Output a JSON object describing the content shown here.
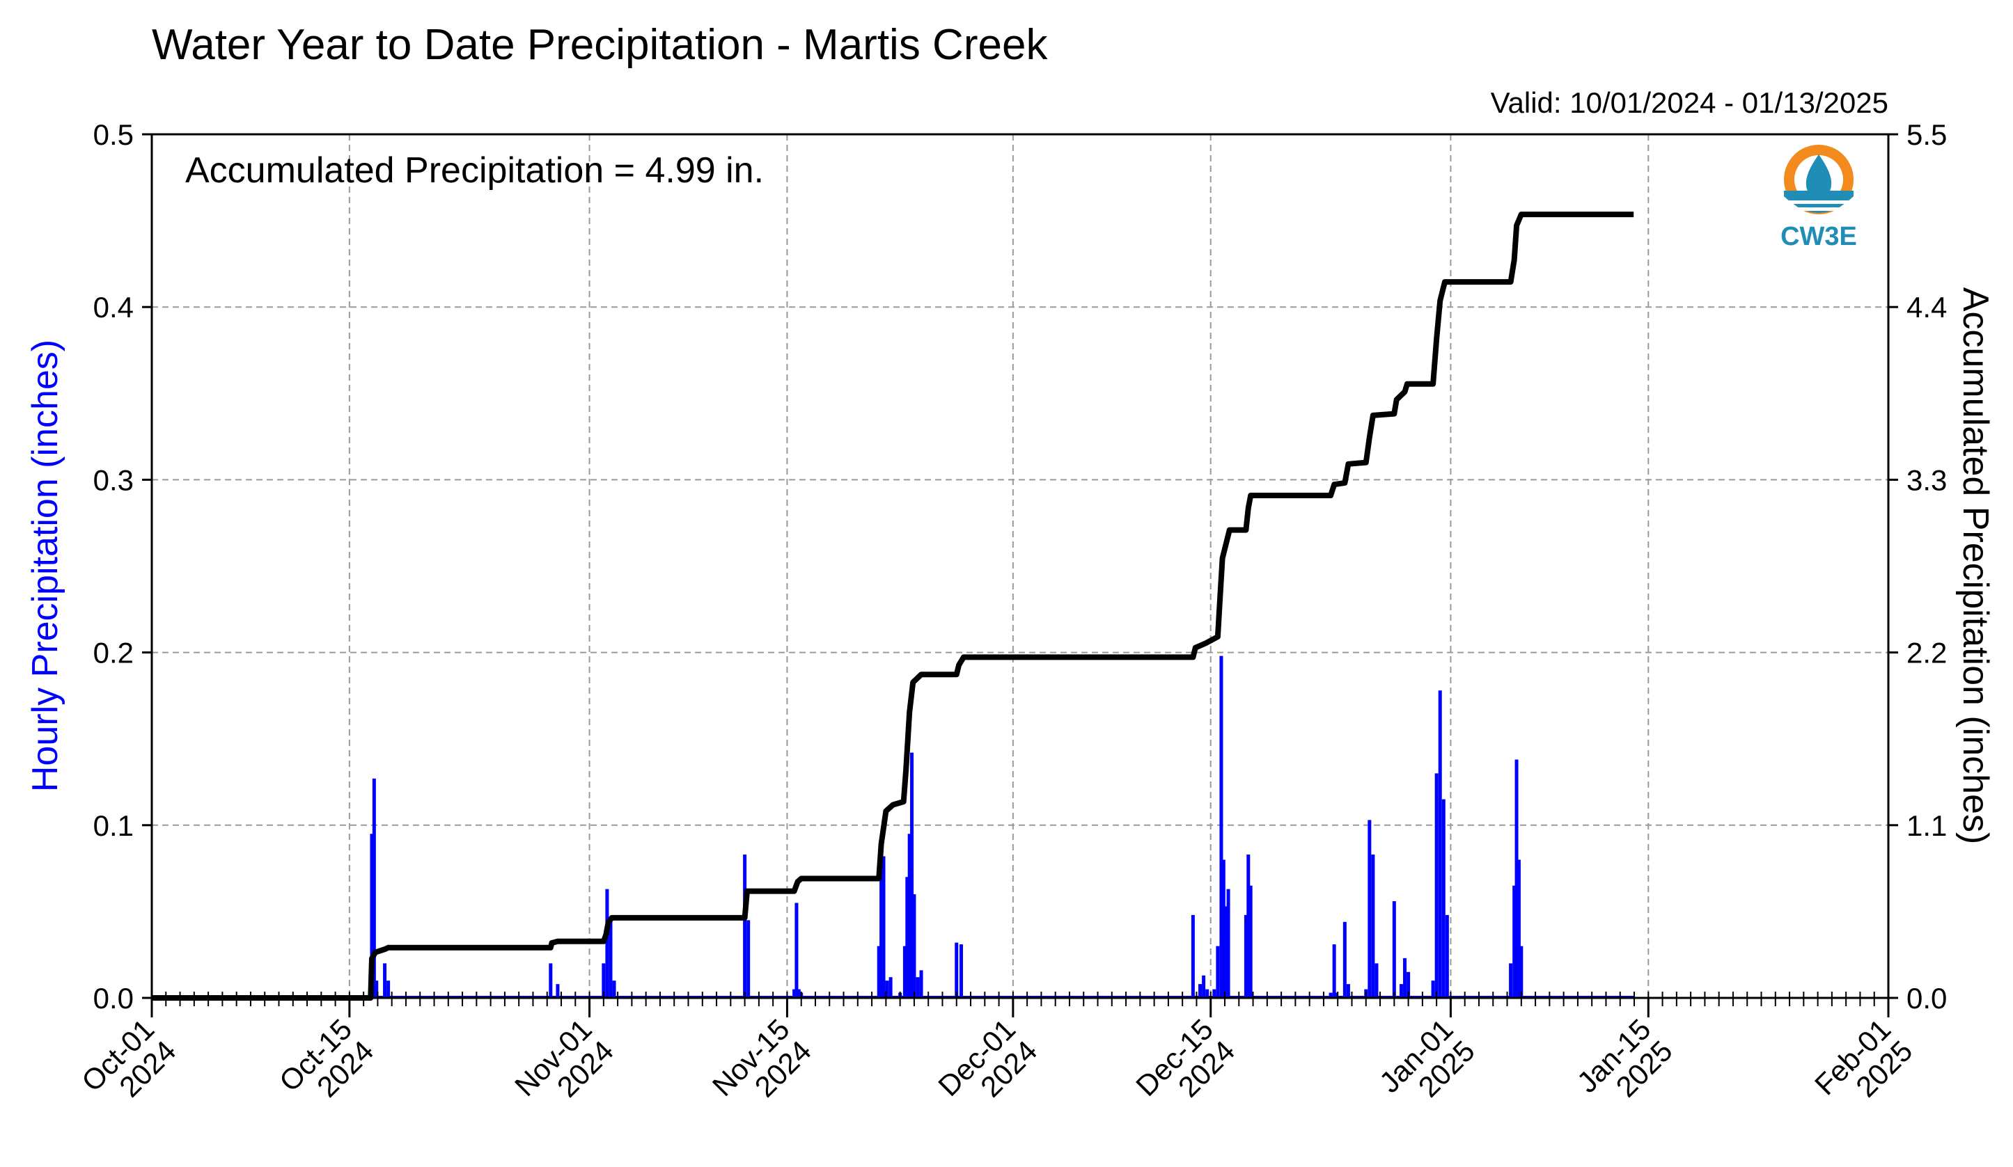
{
  "chart_data": {
    "type": "bar+line",
    "title": "Water Year to Date Precipitation - Martis Creek",
    "valid_text": "Valid: 10/01/2024 - 01/13/2025",
    "annotation": "Accumulated Precipitation = 4.99 in.",
    "logo_text": "CW3E",
    "y_left": {
      "label": "Hourly Precipitation (inches)",
      "range": [
        0,
        0.5
      ],
      "ticks": [
        0.0,
        0.1,
        0.2,
        0.3,
        0.4,
        0.5
      ],
      "tick_labels": [
        "0.0",
        "0.1",
        "0.2",
        "0.3",
        "0.4",
        "0.5"
      ],
      "color": "#0000ff"
    },
    "y_right": {
      "label": "Accumulated Precipitation (inches)",
      "range": [
        0,
        5.5
      ],
      "ticks": [
        0.0,
        1.1,
        2.2,
        3.3,
        4.4,
        5.5
      ],
      "tick_labels": [
        "0.0",
        "1.1",
        "2.2",
        "3.3",
        "4.4",
        "5.5"
      ]
    },
    "x_axis": {
      "range": [
        "2024-10-01",
        "2025-02-01"
      ],
      "ticks": [
        "2024-10-01",
        "2024-10-15",
        "2024-11-01",
        "2024-11-15",
        "2024-12-01",
        "2024-12-15",
        "2025-01-01",
        "2025-01-15",
        "2025-02-01"
      ],
      "tick_labels": [
        [
          "Oct-01",
          "2024"
        ],
        [
          "Oct-15",
          "2024"
        ],
        [
          "Nov-01",
          "2024"
        ],
        [
          "Nov-15",
          "2024"
        ],
        [
          "Dec-01",
          "2024"
        ],
        [
          "Dec-15",
          "2024"
        ],
        [
          "Jan-01",
          "2025"
        ],
        [
          "Jan-15",
          "2025"
        ],
        [
          "Feb-01",
          "2025"
        ]
      ]
    },
    "grid": true,
    "series": [
      {
        "name": "Hourly Precipitation",
        "kind": "bar",
        "color": "#0000ff",
        "points": [
          [
            "2024-10-16 14:00",
            0.095
          ],
          [
            "2024-10-16 18:00",
            0.127
          ],
          [
            "2024-10-16 22:00",
            0.01
          ],
          [
            "2024-10-17 12:00",
            0.02
          ],
          [
            "2024-10-17 18:00",
            0.01
          ],
          [
            "2024-10-29 06:00",
            0.02
          ],
          [
            "2024-10-29 18:00",
            0.008
          ],
          [
            "2024-11-02 00:00",
            0.02
          ],
          [
            "2024-11-02 06:00",
            0.063
          ],
          [
            "2024-11-02 12:00",
            0.045
          ],
          [
            "2024-11-02 18:00",
            0.01
          ],
          [
            "2024-11-12 00:00",
            0.083
          ],
          [
            "2024-11-12 06:00",
            0.045
          ],
          [
            "2024-11-15 12:00",
            0.005
          ],
          [
            "2024-11-15 16:00",
            0.055
          ],
          [
            "2024-11-15 20:00",
            0.005
          ],
          [
            "2024-11-16 00:00",
            0.003
          ],
          [
            "2024-11-21 12:00",
            0.03
          ],
          [
            "2024-11-21 16:00",
            0.075
          ],
          [
            "2024-11-21 20:00",
            0.082
          ],
          [
            "2024-11-22 02:00",
            0.01
          ],
          [
            "2024-11-22 08:00",
            0.012
          ],
          [
            "2024-11-23 00:00",
            0.003
          ],
          [
            "2024-11-23 08:00",
            0.03
          ],
          [
            "2024-11-23 12:00",
            0.07
          ],
          [
            "2024-11-23 16:00",
            0.095
          ],
          [
            "2024-11-23 20:00",
            0.142
          ],
          [
            "2024-11-24 00:00",
            0.06
          ],
          [
            "2024-11-24 06:00",
            0.012
          ],
          [
            "2024-11-24 12:00",
            0.016
          ],
          [
            "2024-11-27 00:00",
            0.032
          ],
          [
            "2024-11-27 08:00",
            0.031
          ],
          [
            "2024-12-13 18:00",
            0.048
          ],
          [
            "2024-12-14 06:00",
            0.008
          ],
          [
            "2024-12-14 12:00",
            0.013
          ],
          [
            "2024-12-14 18:00",
            0.005
          ],
          [
            "2024-12-15 06:00",
            0.005
          ],
          [
            "2024-12-15 12:00",
            0.03
          ],
          [
            "2024-12-15 18:00",
            0.198
          ],
          [
            "2024-12-15 22:00",
            0.08
          ],
          [
            "2024-12-16 02:00",
            0.053
          ],
          [
            "2024-12-16 06:00",
            0.063
          ],
          [
            "2024-12-17 12:00",
            0.048
          ],
          [
            "2024-12-17 16:00",
            0.083
          ],
          [
            "2024-12-17 20:00",
            0.065
          ],
          [
            "2024-12-23 12:00",
            0.003
          ],
          [
            "2024-12-23 18:00",
            0.031
          ],
          [
            "2024-12-23 22:00",
            0.003
          ],
          [
            "2024-12-24 12:00",
            0.044
          ],
          [
            "2024-12-24 18:00",
            0.008
          ],
          [
            "2024-12-26 00:00",
            0.005
          ],
          [
            "2024-12-26 06:00",
            0.103
          ],
          [
            "2024-12-26 12:00",
            0.083
          ],
          [
            "2024-12-26 18:00",
            0.02
          ],
          [
            "2024-12-28 00:00",
            0.056
          ],
          [
            "2024-12-28 12:00",
            0.008
          ],
          [
            "2024-12-28 18:00",
            0.023
          ],
          [
            "2024-12-29 00:00",
            0.015
          ],
          [
            "2024-12-30 18:00",
            0.01
          ],
          [
            "2024-12-31 00:00",
            0.13
          ],
          [
            "2024-12-31 06:00",
            0.178
          ],
          [
            "2024-12-31 12:00",
            0.115
          ],
          [
            "2024-12-31 18:00",
            0.048
          ],
          [
            "2025-01-05 06:00",
            0.02
          ],
          [
            "2025-01-05 12:00",
            0.065
          ],
          [
            "2025-01-05 16:00",
            0.138
          ],
          [
            "2025-01-05 20:00",
            0.08
          ],
          [
            "2025-01-06 00:00",
            0.03
          ]
        ]
      },
      {
        "name": "Accumulated Precipitation",
        "kind": "step-line",
        "color": "#000000",
        "points": [
          [
            "2024-10-01 00:00",
            0.0
          ],
          [
            "2024-10-16 12:00",
            0.0
          ],
          [
            "2024-10-16 14:00",
            0.25
          ],
          [
            "2024-10-16 20:00",
            0.29
          ],
          [
            "2024-10-17 12:00",
            0.31
          ],
          [
            "2024-10-17 18:00",
            0.32
          ],
          [
            "2024-10-29 06:00",
            0.32
          ],
          [
            "2024-10-29 08:00",
            0.35
          ],
          [
            "2024-10-29 18:00",
            0.36
          ],
          [
            "2024-11-02 00:00",
            0.36
          ],
          [
            "2024-11-02 04:00",
            0.4
          ],
          [
            "2024-11-02 08:00",
            0.48
          ],
          [
            "2024-11-02 14:00",
            0.51
          ],
          [
            "2024-11-12 00:00",
            0.51
          ],
          [
            "2024-11-12 04:00",
            0.68
          ],
          [
            "2024-11-15 12:00",
            0.68
          ],
          [
            "2024-11-15 18:00",
            0.74
          ],
          [
            "2024-11-16 00:00",
            0.76
          ],
          [
            "2024-11-21 12:00",
            0.76
          ],
          [
            "2024-11-21 16:00",
            0.98
          ],
          [
            "2024-11-22 00:00",
            1.19
          ],
          [
            "2024-11-22 12:00",
            1.23
          ],
          [
            "2024-11-23 06:00",
            1.25
          ],
          [
            "2024-11-23 10:00",
            1.45
          ],
          [
            "2024-11-23 16:00",
            1.82
          ],
          [
            "2024-11-23 22:00",
            2.01
          ],
          [
            "2024-11-24 12:00",
            2.06
          ],
          [
            "2024-11-27 00:00",
            2.06
          ],
          [
            "2024-11-27 04:00",
            2.12
          ],
          [
            "2024-11-27 12:00",
            2.17
          ],
          [
            "2024-12-13 18:00",
            2.17
          ],
          [
            "2024-12-13 22:00",
            2.23
          ],
          [
            "2024-12-14 16:00",
            2.26
          ],
          [
            "2024-12-15 12:00",
            2.3
          ],
          [
            "2024-12-15 16:00",
            2.55
          ],
          [
            "2024-12-15 20:00",
            2.8
          ],
          [
            "2024-12-16 04:00",
            2.92
          ],
          [
            "2024-12-16 08:00",
            2.98
          ],
          [
            "2024-12-17 12:00",
            2.98
          ],
          [
            "2024-12-17 16:00",
            3.12
          ],
          [
            "2024-12-17 20:00",
            3.2
          ],
          [
            "2024-12-23 12:00",
            3.2
          ],
          [
            "2024-12-23 18:00",
            3.27
          ],
          [
            "2024-12-24 12:00",
            3.28
          ],
          [
            "2024-12-24 18:00",
            3.4
          ],
          [
            "2024-12-26 00:00",
            3.41
          ],
          [
            "2024-12-26 06:00",
            3.57
          ],
          [
            "2024-12-26 12:00",
            3.71
          ],
          [
            "2024-12-28 00:00",
            3.72
          ],
          [
            "2024-12-28 04:00",
            3.81
          ],
          [
            "2024-12-28 18:00",
            3.86
          ],
          [
            "2024-12-28 22:00",
            3.91
          ],
          [
            "2024-12-30 18:00",
            3.91
          ],
          [
            "2024-12-31 00:00",
            4.2
          ],
          [
            "2024-12-31 06:00",
            4.44
          ],
          [
            "2024-12-31 14:00",
            4.56
          ],
          [
            "2025-01-05 06:00",
            4.56
          ],
          [
            "2025-01-05 12:00",
            4.7
          ],
          [
            "2025-01-05 16:00",
            4.92
          ],
          [
            "2025-01-06 00:00",
            4.99
          ],
          [
            "2025-01-13 23:00",
            4.99
          ]
        ]
      }
    ]
  }
}
